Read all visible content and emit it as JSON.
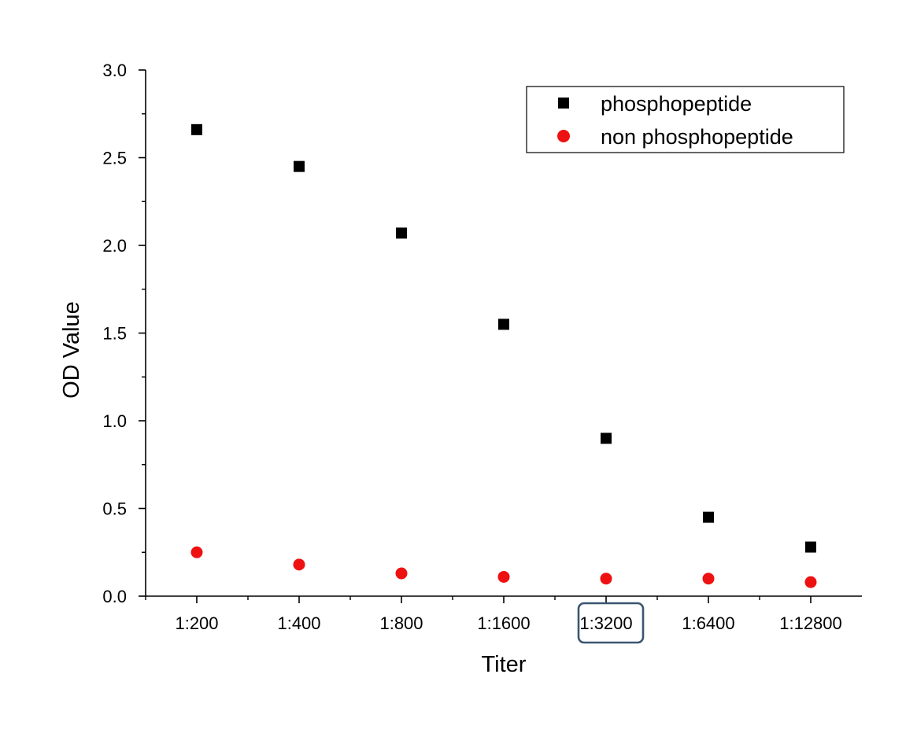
{
  "chart_data": {
    "type": "scatter",
    "title": "",
    "xlabel": "Titer",
    "ylabel": "OD Value",
    "categories": [
      "1:200",
      "1:400",
      "1:800",
      "1:1600",
      "1:3200",
      "1:6400",
      "1:12800"
    ],
    "yticks": [
      "0.0",
      "0.5",
      "1.0",
      "1.5",
      "2.0",
      "2.5",
      "3.0"
    ],
    "ylim": [
      0,
      3.0
    ],
    "grid": false,
    "legend_position": "top-right",
    "highlighted_category": "1:3200",
    "series": [
      {
        "name": "phosphopeptide",
        "marker": "square",
        "color": "#000000",
        "values": [
          2.66,
          2.45,
          2.07,
          1.55,
          0.9,
          0.45,
          0.28
        ]
      },
      {
        "name": "non phosphopeptide",
        "marker": "circle",
        "color": "#ee1111",
        "values": [
          0.25,
          0.18,
          0.13,
          0.11,
          0.1,
          0.1,
          0.08
        ]
      }
    ],
    "highlight_color": "#3b5670"
  }
}
